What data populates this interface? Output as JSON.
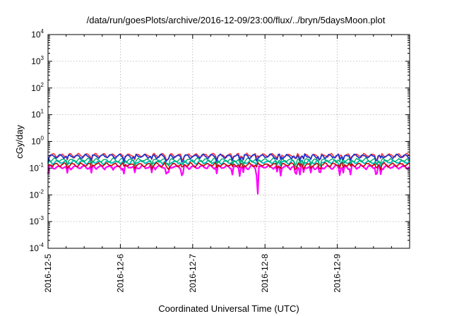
{
  "chart_data": {
    "type": "line",
    "title": "/data/run/goesPlots/archive/2016-12-09/23:00/flux/../bryn/5daysMoon.plot",
    "xlabel": "Coordinated Universal Time (UTC)",
    "ylabel": "cGy/day",
    "yscale": "log",
    "ylim": [
      0.0001,
      10000
    ],
    "xlim": [
      "2016-12-05",
      "2016-12-10"
    ],
    "grid": true,
    "y_ticks": [
      {
        "base": "10",
        "exp": "-4",
        "value": 0.0001
      },
      {
        "base": "10",
        "exp": "-3",
        "value": 0.001
      },
      {
        "base": "10",
        "exp": "-2",
        "value": 0.01
      },
      {
        "base": "10",
        "exp": "-1",
        "value": 0.1
      },
      {
        "base": "10",
        "exp": "0",
        "value": 1
      },
      {
        "base": "10",
        "exp": "1",
        "value": 10
      },
      {
        "base": "10",
        "exp": "2",
        "value": 100
      },
      {
        "base": "10",
        "exp": "3",
        "value": 1000
      },
      {
        "base": "10",
        "exp": "4",
        "value": 10000
      }
    ],
    "x_ticks": [
      "2016-12-5",
      "2016-12-6",
      "2016-12-7",
      "2016-12-8",
      "2016-12-9"
    ],
    "series": [
      {
        "color": "#ff00ff",
        "width": 2.2,
        "baseline": 0.11,
        "dip_to": 0.011,
        "dip_at": "2016-12-07T21:30"
      },
      {
        "color": "#00c0c0",
        "width": 2.0,
        "baseline": 0.17
      },
      {
        "color": "#cc0000",
        "width": 1.6,
        "baseline": 0.135
      },
      {
        "color": "#00aa66",
        "width": 1.4,
        "baseline": 0.2
      },
      {
        "color": "#ff3333",
        "width": 1.6,
        "baseline": 0.3
      },
      {
        "color": "#2233cc",
        "width": 1.8,
        "baseline": 0.28
      }
    ]
  }
}
